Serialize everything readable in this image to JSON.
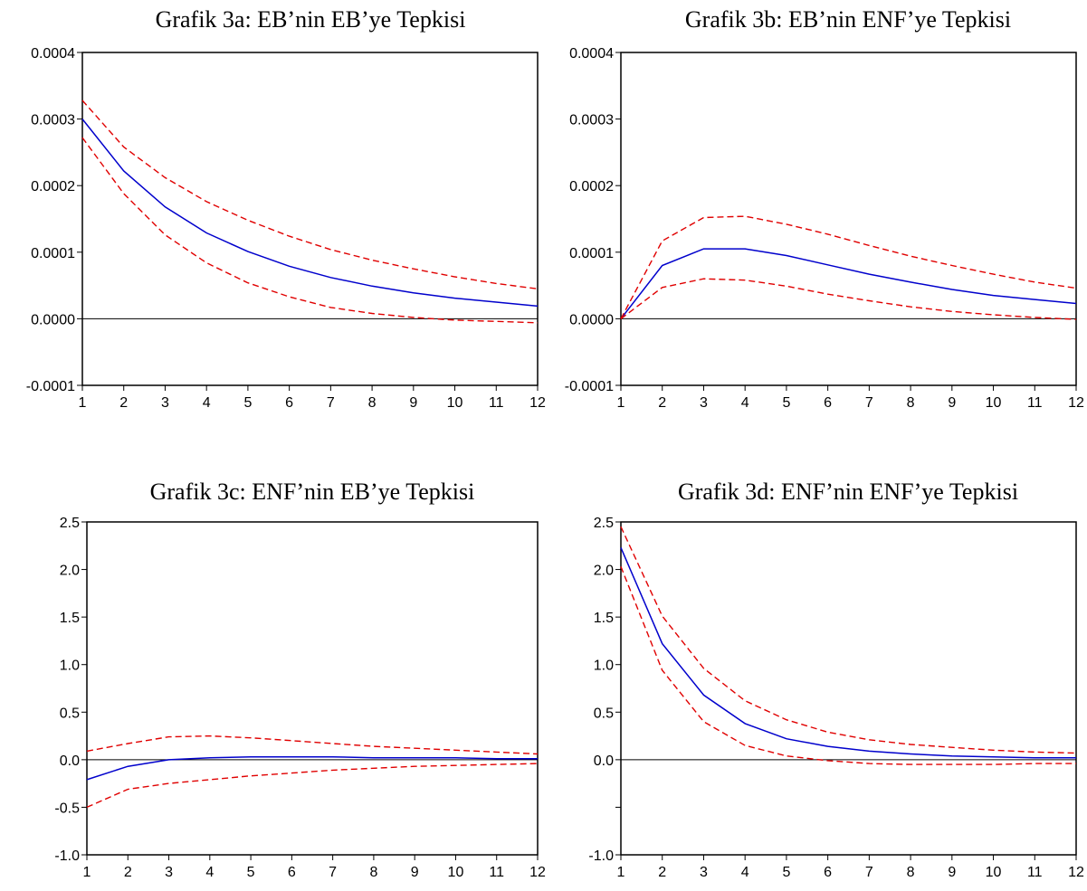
{
  "colors": {
    "response": "#0000cc",
    "band": "#e00000",
    "zero_line": "#000000",
    "frame": "#000000"
  },
  "chart_data": [
    {
      "id": "3a",
      "type": "line",
      "title": "Grafik 3a: EB’nin EB’ye Tepkisi",
      "x": [
        1,
        2,
        3,
        4,
        5,
        6,
        7,
        8,
        9,
        10,
        11,
        12
      ],
      "xtick_labels": [
        "1",
        "2",
        "3",
        "4",
        "5",
        "6",
        "7",
        "8",
        "9",
        "10",
        "11",
        "12"
      ],
      "ylim": [
        -0.0001,
        0.0004
      ],
      "yticks": [
        -0.0001,
        0.0,
        0.0001,
        0.0002,
        0.0003,
        0.0004
      ],
      "ytick_labels": [
        "-0.0001",
        "0.0000",
        "0.0001",
        "0.0002",
        "0.0003",
        "0.0004"
      ],
      "series": [
        {
          "role": "response",
          "values": [
            0.0003,
            0.000222,
            0.000168,
            0.000129,
            0.000101,
            7.9e-05,
            6.2e-05,
            4.9e-05,
            3.9e-05,
            3.1e-05,
            2.5e-05,
            1.9e-05
          ]
        },
        {
          "role": "upper",
          "values": [
            0.000328,
            0.000258,
            0.000212,
            0.000176,
            0.000148,
            0.000124,
            0.000104,
            8.8e-05,
            7.5e-05,
            6.3e-05,
            5.3e-05,
            4.5e-05
          ]
        },
        {
          "role": "lower",
          "values": [
            0.000272,
            0.000188,
            0.000126,
            8.4e-05,
            5.4e-05,
            3.3e-05,
            1.7e-05,
            8e-06,
            2e-06,
            -2e-06,
            -4e-06,
            -6e-06
          ]
        }
      ]
    },
    {
      "id": "3b",
      "type": "line",
      "title": "Grafik 3b: EB’nin ENF’ye Tepkisi",
      "x": [
        1,
        2,
        3,
        4,
        5,
        6,
        7,
        8,
        9,
        10,
        11,
        12
      ],
      "xtick_labels": [
        "1",
        "2",
        "3",
        "4",
        "5",
        "6",
        "7",
        "8",
        "9",
        "10",
        "11",
        "12"
      ],
      "ylim": [
        -0.0001,
        0.0004
      ],
      "yticks": [
        -0.0001,
        0.0,
        0.0001,
        0.0002,
        0.0003,
        0.0004
      ],
      "ytick_labels": [
        "-0.0001",
        "0.0000",
        "0.0001",
        "0.0002",
        "0.0003",
        "0.0004"
      ],
      "series": [
        {
          "role": "response",
          "values": [
            0.0,
            8e-05,
            0.000105,
            0.000105,
            9.5e-05,
            8.1e-05,
            6.7e-05,
            5.5e-05,
            4.4e-05,
            3.5e-05,
            2.9e-05,
            2.3e-05
          ]
        },
        {
          "role": "upper",
          "values": [
            0.0,
            0.000117,
            0.000152,
            0.000154,
            0.000142,
            0.000127,
            0.00011,
            9.4e-05,
            8e-05,
            6.7e-05,
            5.5e-05,
            4.6e-05
          ]
        },
        {
          "role": "lower",
          "values": [
            0.0,
            4.7e-05,
            6e-05,
            5.8e-05,
            4.9e-05,
            3.7e-05,
            2.7e-05,
            1.8e-05,
            1.1e-05,
            6e-06,
            2e-06,
            -1e-06
          ]
        }
      ]
    },
    {
      "id": "3c",
      "type": "line",
      "title": "Grafik 3c: ENF’nin EB’ye Tepkisi",
      "x": [
        1,
        2,
        3,
        4,
        5,
        6,
        7,
        8,
        9,
        10,
        11,
        12
      ],
      "xtick_labels": [
        "1",
        "2",
        "3",
        "4",
        "5",
        "6",
        "7",
        "8",
        "9",
        "10",
        "11",
        "12"
      ],
      "ylim": [
        -1.0,
        2.5
      ],
      "yticks": [
        -1.0,
        -0.5,
        0.0,
        0.5,
        1.0,
        1.5,
        2.0,
        2.5
      ],
      "ytick_labels": [
        "-1.0",
        "-0.5",
        "0.0",
        "0.5",
        "1.0",
        "1.5",
        "2.0",
        "2.5"
      ],
      "series": [
        {
          "role": "response",
          "values": [
            -0.21,
            -0.07,
            0.0,
            0.02,
            0.03,
            0.03,
            0.03,
            0.02,
            0.02,
            0.02,
            0.01,
            0.01
          ]
        },
        {
          "role": "upper",
          "values": [
            0.09,
            0.17,
            0.24,
            0.25,
            0.23,
            0.2,
            0.17,
            0.14,
            0.12,
            0.1,
            0.08,
            0.06
          ]
        },
        {
          "role": "lower",
          "values": [
            -0.5,
            -0.31,
            -0.25,
            -0.21,
            -0.17,
            -0.14,
            -0.11,
            -0.09,
            -0.07,
            -0.06,
            -0.05,
            -0.04
          ]
        }
      ]
    },
    {
      "id": "3d",
      "type": "line",
      "title": "Grafik 3d: ENF’nin ENF’ye Tepkisi",
      "x": [
        1,
        2,
        3,
        4,
        5,
        6,
        7,
        8,
        9,
        10,
        11,
        12
      ],
      "xtick_labels": [
        "1",
        "2",
        "3",
        "4",
        "5",
        "6",
        "7",
        "8",
        "9",
        "10",
        "11",
        "12"
      ],
      "ylim": [
        -1.0,
        2.5
      ],
      "yticks": [
        -1.0,
        -0.5,
        0.0,
        0.5,
        1.0,
        1.5,
        2.0,
        2.5
      ],
      "ytick_labels": [
        "-1.0",
        "",
        "0.0",
        "0.5",
        "1.0",
        "1.5",
        "2.0",
        "2.5"
      ],
      "series": [
        {
          "role": "response",
          "values": [
            2.23,
            1.22,
            0.68,
            0.38,
            0.22,
            0.14,
            0.09,
            0.06,
            0.04,
            0.03,
            0.02,
            0.02
          ]
        },
        {
          "role": "upper",
          "values": [
            2.45,
            1.51,
            0.96,
            0.62,
            0.42,
            0.29,
            0.21,
            0.16,
            0.13,
            0.1,
            0.08,
            0.07
          ]
        },
        {
          "role": "lower",
          "values": [
            2.03,
            0.94,
            0.4,
            0.15,
            0.04,
            -0.01,
            -0.04,
            -0.05,
            -0.05,
            -0.05,
            -0.04,
            -0.04
          ]
        }
      ]
    }
  ]
}
